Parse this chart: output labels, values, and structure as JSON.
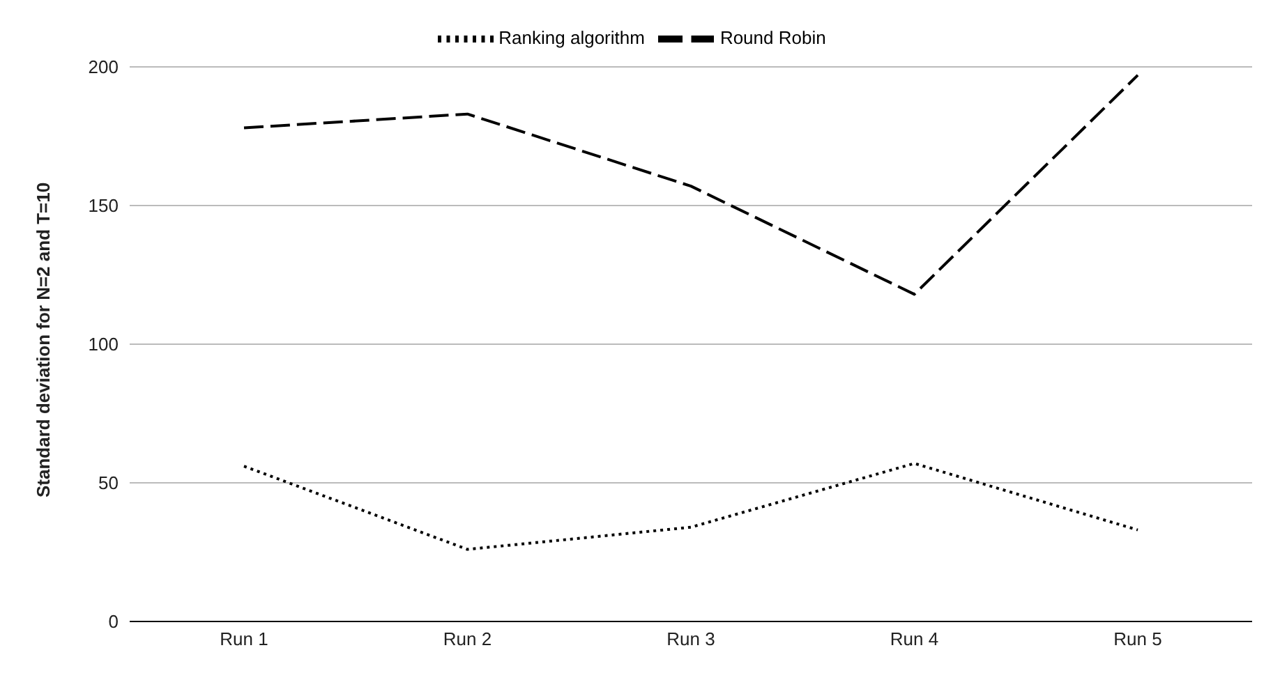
{
  "chart_data": {
    "type": "line",
    "ylabel": "Standard deviation for N=2 and T=10",
    "categories": [
      "Run 1",
      "Run 2",
      "Run 3",
      "Run 4",
      "Run 5"
    ],
    "series": [
      {
        "name": "Ranking algorithm",
        "color": "#000000",
        "line_style": "dotted",
        "values": [
          56,
          26,
          34,
          57,
          33
        ]
      },
      {
        "name": "Round Robin",
        "color": "#000000",
        "line_style": "dashed",
        "values": [
          178,
          183,
          157,
          118,
          197
        ]
      }
    ],
    "ylim": [
      0,
      200
    ],
    "yticks": [
      0,
      50,
      100,
      150,
      200
    ],
    "grid": "y",
    "legend": "top",
    "marker": "none"
  }
}
